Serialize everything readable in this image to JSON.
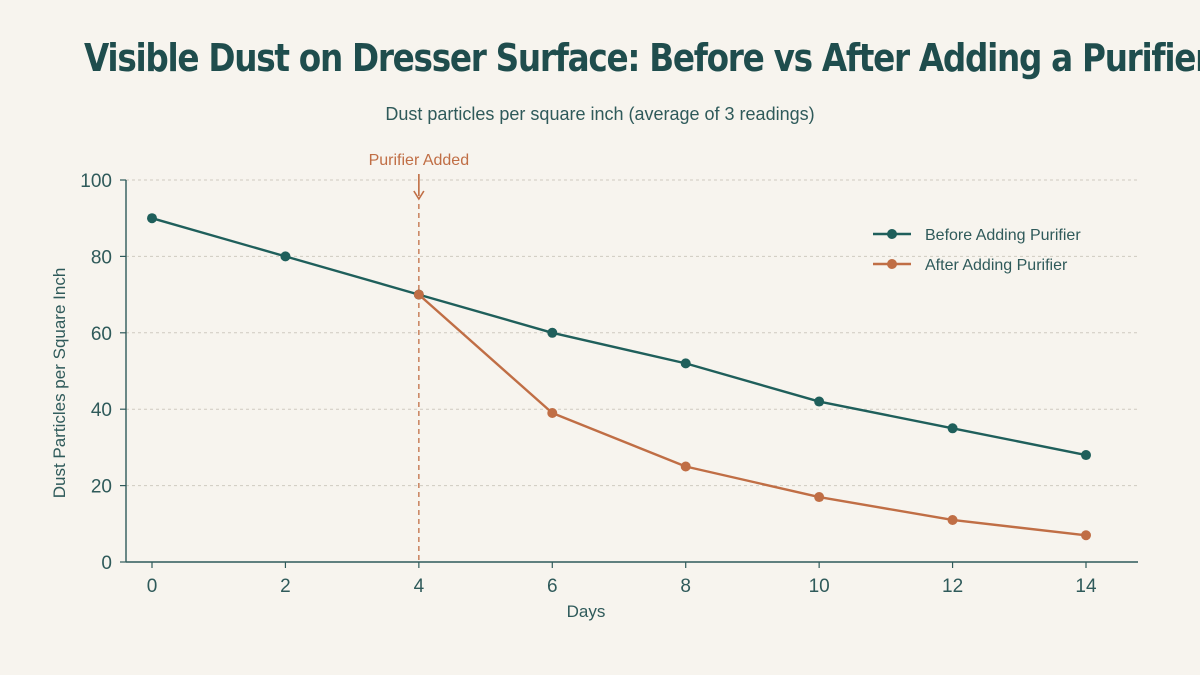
{
  "colors": {
    "background": "#f7f4ee",
    "title": "#1f4d4d",
    "text": "#2f5a5a",
    "axis": "#2f5a5a",
    "grid": "#cfcac0",
    "before": "#1f5f5b",
    "after": "#c06e45",
    "annotation": "#c06e45"
  },
  "chart_data": {
    "type": "line",
    "title": "Visible Dust on Dresser Surface: Before vs After Adding a Purifier",
    "subtitle": "Dust particles per square inch (average of 3 readings)",
    "xlabel": "Days",
    "ylabel": "Dust Particles per Square Inch",
    "xlim": [
      0,
      14
    ],
    "ylim": [
      0,
      100
    ],
    "x_ticks": [
      0,
      2,
      4,
      6,
      8,
      10,
      12,
      14
    ],
    "y_ticks": [
      0,
      20,
      40,
      60,
      80,
      100
    ],
    "grid": "horizontal dashed",
    "legend_position": "top-right",
    "series": [
      {
        "name": "Before Adding Purifier",
        "color": "#1f5f5b",
        "x": [
          0,
          2,
          4,
          6,
          8,
          10,
          12,
          14
        ],
        "y": [
          90,
          80,
          70,
          60,
          52,
          42,
          35,
          28
        ]
      },
      {
        "name": "After Adding Purifier",
        "color": "#c06e45",
        "x": [
          4,
          6,
          8,
          10,
          12,
          14
        ],
        "y": [
          70,
          39,
          25,
          17,
          11,
          7
        ]
      }
    ],
    "annotations": [
      {
        "label": "Purifier Added",
        "x": 4,
        "style": "dashed vertical line with arrow"
      }
    ]
  }
}
